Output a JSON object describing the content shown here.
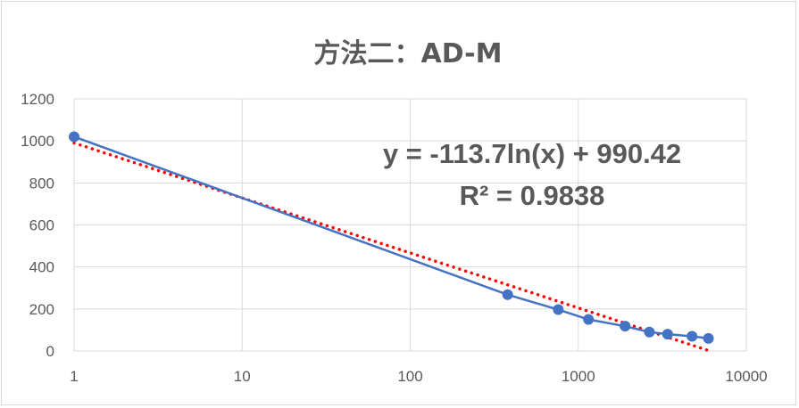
{
  "chart_data": {
    "type": "scatter",
    "title": "方法二：AD-M",
    "x_scale": "log",
    "xlim": [
      1,
      10000
    ],
    "ylim": [
      0,
      1200
    ],
    "x_ticks": [
      1,
      10,
      100,
      1000,
      10000
    ],
    "x_tick_labels": [
      "1",
      "10",
      "100",
      "1000",
      "10000"
    ],
    "y_ticks": [
      0,
      200,
      400,
      600,
      800,
      1000,
      1200
    ],
    "y_tick_labels": [
      "0",
      "200",
      "400",
      "600",
      "800",
      "1000",
      "1200"
    ],
    "grid": true,
    "series": [
      {
        "color": "#4472c4",
        "style": "markers-with-lines",
        "x": [
          1,
          380,
          760,
          1150,
          1900,
          2650,
          3400,
          4750,
          5950
        ],
        "y": [
          1020,
          268,
          197,
          150,
          118,
          90,
          80,
          70,
          60
        ]
      }
    ],
    "trendline": {
      "type": "logarithmic",
      "color": "#ff0000",
      "style": "dotted",
      "a": -113.7,
      "b": 990.42,
      "x_range": [
        1,
        5950
      ]
    },
    "annotations": {
      "equation": "y = -113.7ln(x) + 990.42",
      "r_squared": "R² = 0.9838"
    }
  }
}
